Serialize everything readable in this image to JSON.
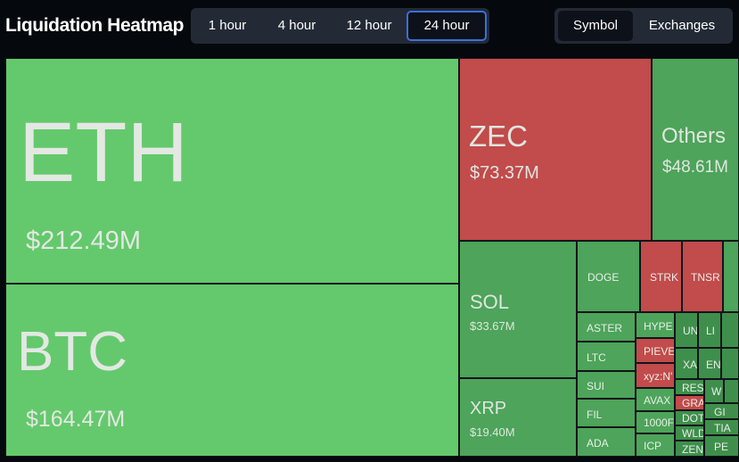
{
  "header": {
    "title": "Liquidation Heatmap",
    "time_tabs": [
      "1 hour",
      "4 hour",
      "12 hour",
      "24 hour"
    ],
    "active_time_tab": "24 hour",
    "view_tabs": [
      "Symbol",
      "Exchanges"
    ],
    "active_view_tab": "Symbol"
  },
  "colors": {
    "long_liquidation_green": "#64c96c",
    "green_mid": "#4da45a",
    "short_liquidation_red": "#c24b4b",
    "active_tab_border": "#3b6fd9"
  },
  "heatmap": {
    "eth": {
      "symbol": "ETH",
      "amount": "$212.49M"
    },
    "btc": {
      "symbol": "BTC",
      "amount": "$164.47M"
    },
    "zec": {
      "symbol": "ZEC",
      "amount": "$73.37M"
    },
    "others": {
      "symbol": "Others",
      "amount": "$48.61M"
    },
    "sol": {
      "symbol": "SOL",
      "amount": "$33.67M"
    },
    "xrp": {
      "symbol": "XRP",
      "amount": "$19.40M"
    },
    "small": {
      "doge": "DOGE",
      "strk": "STRK",
      "tnsr": "TNSR",
      "aster": "ASTER",
      "hype": "HYPE",
      "un": "UN",
      "li": "LI",
      "ltc": "LTC",
      "pieve": "PIEVE",
      "xa": "XA",
      "en": "EN",
      "xyz": "xyz:N'",
      "sui": "SUI",
      "res": "RES",
      "w": "W",
      "avax": "AVAX",
      "gra": "GRA",
      "fil": "FIL",
      "dot": "DOT",
      "gi": "GI",
      "_1000": "1000F",
      "ti": "TIA",
      "ada": "ADA",
      "wld": "WLD",
      "icp": "ICP",
      "zen": "ZEN",
      "pe": "PE"
    }
  }
}
